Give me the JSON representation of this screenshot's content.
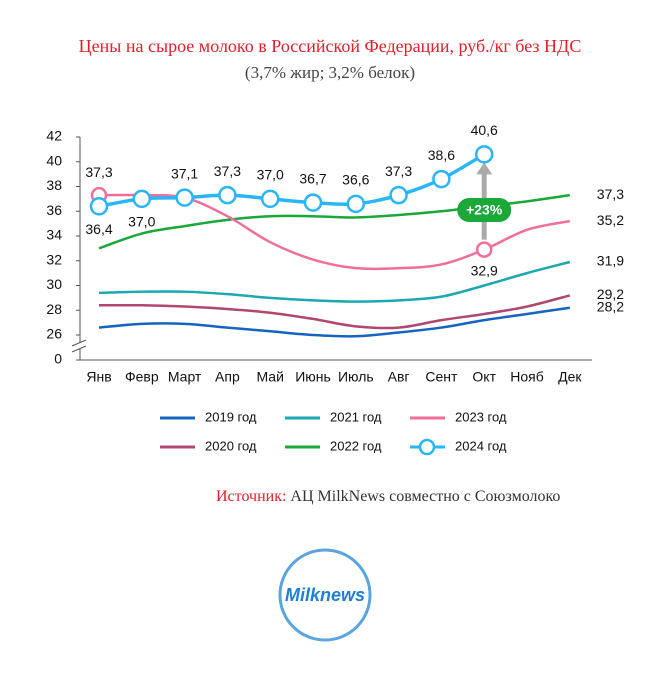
{
  "chart_data": {
    "type": "line",
    "title": "Цены на сырое молоко в Российской Федерации, руб./кг без НДС",
    "subtitle": "(3,7% жир; 3,2% белок)",
    "categories": [
      "Янв",
      "Февр",
      "Март",
      "Апр",
      "Май",
      "Июнь",
      "Июль",
      "Авг",
      "Сент",
      "Окт",
      "Нояб",
      "Дек"
    ],
    "ylim": [
      0,
      42
    ],
    "y_break": [
      0,
      26
    ],
    "yticks": [
      0,
      26,
      28,
      30,
      32,
      34,
      36,
      38,
      40,
      42
    ],
    "series": [
      {
        "name": "2019 год",
        "color": "#1565c0",
        "values": [
          26.6,
          26.9,
          26.9,
          26.6,
          26.3,
          26.0,
          25.9,
          26.2,
          26.6,
          27.2,
          27.7,
          28.2
        ],
        "value_labels": [
          null,
          null,
          null,
          null,
          null,
          null,
          null,
          null,
          null,
          null,
          null,
          "28,2"
        ]
      },
      {
        "name": "2020 год",
        "color": "#b0476e",
        "values": [
          28.4,
          28.4,
          28.3,
          28.1,
          27.8,
          27.3,
          26.7,
          26.6,
          27.2,
          27.7,
          28.3,
          29.2
        ],
        "value_labels": [
          null,
          null,
          null,
          null,
          null,
          null,
          null,
          null,
          null,
          null,
          null,
          "29,2"
        ]
      },
      {
        "name": "2021 год",
        "color": "#1ba8b0",
        "values": [
          29.4,
          29.5,
          29.5,
          29.3,
          29.0,
          28.8,
          28.7,
          28.8,
          29.1,
          30.0,
          31.0,
          31.9
        ],
        "value_labels": [
          null,
          null,
          null,
          null,
          null,
          null,
          null,
          null,
          null,
          null,
          null,
          "31,9"
        ]
      },
      {
        "name": "2022 год",
        "color": "#1aa838",
        "values": [
          33.0,
          34.2,
          34.8,
          35.3,
          35.6,
          35.6,
          35.5,
          35.7,
          36.0,
          36.4,
          36.8,
          37.3
        ],
        "value_labels": [
          null,
          null,
          null,
          null,
          null,
          null,
          null,
          null,
          null,
          null,
          null,
          "37,3"
        ]
      },
      {
        "name": "2023 год",
        "color": "#f06e9c",
        "values": [
          37.3,
          37.3,
          37.1,
          35.6,
          33.5,
          32.1,
          31.4,
          31.4,
          31.7,
          32.9,
          34.5,
          35.2
        ],
        "value_labels": [
          "37,3",
          null,
          null,
          null,
          null,
          null,
          null,
          null,
          null,
          "32,9",
          null,
          "35,2"
        ]
      },
      {
        "name": "2024 год",
        "color": "#29b6f6",
        "values": [
          36.4,
          37.0,
          37.1,
          37.3,
          37.0,
          36.7,
          36.6,
          37.3,
          38.6,
          40.6,
          null,
          null
        ],
        "value_labels": [
          "36,4",
          "37,0",
          "37,1",
          "37,3",
          "37,0",
          "36,7",
          "36,6",
          "37,3",
          "38,6",
          "40,6",
          null,
          null
        ]
      }
    ],
    "annotation": "+23%",
    "source_label": "Источник:",
    "source": "АЦ MilkNews совместно с Союзмолоко",
    "logo": "Milknews"
  }
}
